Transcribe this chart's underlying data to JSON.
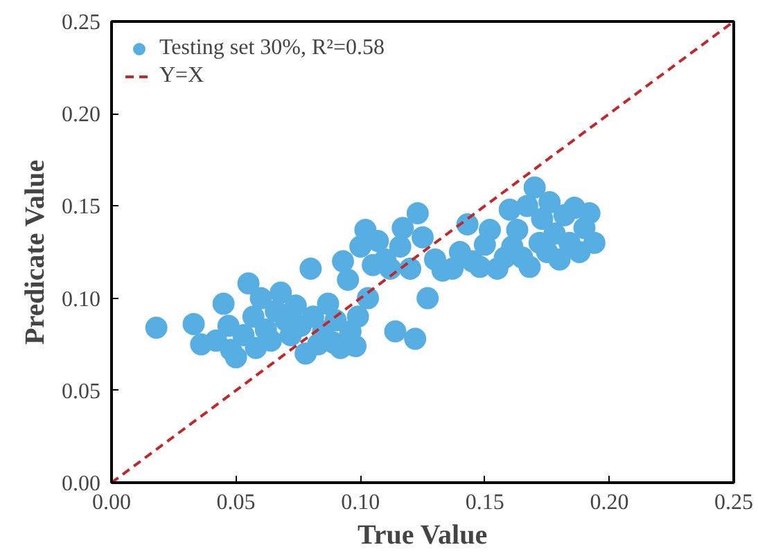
{
  "chart_data": {
    "type": "scatter",
    "xlabel": "True Value",
    "ylabel": "Predicate Value",
    "xlim": [
      0,
      0.25
    ],
    "ylim": [
      0,
      0.25
    ],
    "xticks": [
      {
        "value": 0,
        "label": "0.00"
      },
      {
        "value": 0.05,
        "label": "0.05"
      },
      {
        "value": 0.1,
        "label": "0.10"
      },
      {
        "value": 0.15,
        "label": "0.15"
      },
      {
        "value": 0.2,
        "label": "0.20"
      },
      {
        "value": 0.25,
        "label": "0.25"
      }
    ],
    "yticks": [
      {
        "value": 0,
        "label": "0.00"
      },
      {
        "value": 0.05,
        "label": "0.05"
      },
      {
        "value": 0.1,
        "label": "0.10"
      },
      {
        "value": 0.15,
        "label": "0.15"
      },
      {
        "value": 0.2,
        "label": "0.20"
      },
      {
        "value": 0.25,
        "label": "0.25"
      }
    ],
    "grid": false,
    "legend": "top left",
    "series": [
      {
        "name": "Testing set 30%, R²=0.58",
        "marker": "circle",
        "color": "#56aee2",
        "x": [
          0.018,
          0.033,
          0.036,
          0.042,
          0.045,
          0.047,
          0.048,
          0.05,
          0.053,
          0.055,
          0.057,
          0.058,
          0.06,
          0.062,
          0.064,
          0.066,
          0.068,
          0.07,
          0.072,
          0.074,
          0.076,
          0.078,
          0.08,
          0.081,
          0.083,
          0.085,
          0.087,
          0.089,
          0.09,
          0.092,
          0.093,
          0.095,
          0.096,
          0.098,
          0.099,
          0.1,
          0.102,
          0.103,
          0.105,
          0.107,
          0.11,
          0.112,
          0.114,
          0.116,
          0.117,
          0.12,
          0.122,
          0.123,
          0.125,
          0.127,
          0.13,
          0.133,
          0.137,
          0.14,
          0.143,
          0.145,
          0.148,
          0.15,
          0.152,
          0.155,
          0.158,
          0.16,
          0.161,
          0.163,
          0.165,
          0.167,
          0.168,
          0.17,
          0.172,
          0.173,
          0.175,
          0.176,
          0.178,
          0.18,
          0.182,
          0.184,
          0.186,
          0.188,
          0.19,
          0.192,
          0.194
        ],
        "values": [
          0.084,
          0.086,
          0.075,
          0.077,
          0.097,
          0.085,
          0.072,
          0.068,
          0.08,
          0.108,
          0.09,
          0.073,
          0.1,
          0.083,
          0.077,
          0.093,
          0.103,
          0.088,
          0.08,
          0.096,
          0.085,
          0.07,
          0.116,
          0.09,
          0.075,
          0.082,
          0.097,
          0.076,
          0.088,
          0.073,
          0.12,
          0.11,
          0.082,
          0.074,
          0.09,
          0.128,
          0.137,
          0.1,
          0.118,
          0.131,
          0.121,
          0.116,
          0.082,
          0.128,
          0.138,
          0.116,
          0.078,
          0.146,
          0.133,
          0.1,
          0.121,
          0.115,
          0.116,
          0.125,
          0.14,
          0.12,
          0.117,
          0.129,
          0.137,
          0.116,
          0.122,
          0.148,
          0.128,
          0.137,
          0.122,
          0.15,
          0.117,
          0.16,
          0.13,
          0.143,
          0.125,
          0.152,
          0.135,
          0.121,
          0.145,
          0.13,
          0.149,
          0.125,
          0.138,
          0.146,
          0.13
        ]
      },
      {
        "name": "Y=X",
        "type": "line",
        "line_style": "dashed",
        "color": "#c0282d",
        "x": [
          0,
          0.25
        ],
        "values": [
          0,
          0.25
        ]
      }
    ]
  }
}
